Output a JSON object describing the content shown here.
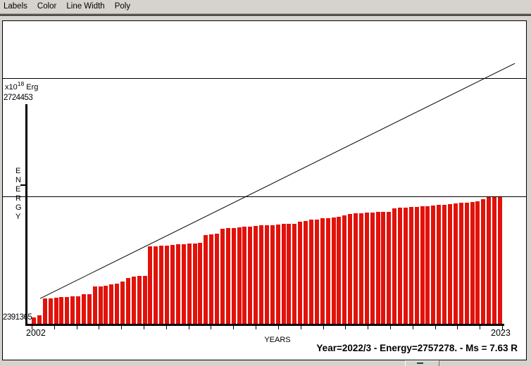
{
  "menu": {
    "items": [
      {
        "label": "Labels"
      },
      {
        "label": "Color"
      },
      {
        "label": "Line Width"
      },
      {
        "label": "Poly"
      }
    ]
  },
  "axis_labels": {
    "y_multiplier": "x10",
    "y_exponent": "18",
    "y_unit": "Erg",
    "y_max": "2724453",
    "y_min": "2391365",
    "y_title_multiline": "E\nN\nE\nR\nG\nY",
    "x_first": "2002",
    "x_last": "2023",
    "x_title": "YEARS"
  },
  "status": {
    "text": "Year=2022/3 - Energy=2757278. - Ms = 7.63 R"
  },
  "chart_data": {
    "type": "bar",
    "xlabel": "YEARS",
    "ylabel": "ENERGY",
    "y_unit": "x10^18 Erg",
    "x_start": 2002.0,
    "x_step": 0.25,
    "x_tick_first": 2002,
    "x_tick_last": 2023,
    "ylim": [
      2391365,
      2724453
    ],
    "bar_color": "#e2120b",
    "line_color": "#000000",
    "values": [
      2402000,
      2405200,
      2430600,
      2430600,
      2431700,
      2432700,
      2432700,
      2433800,
      2433800,
      2437000,
      2437000,
      2448600,
      2448600,
      2449700,
      2451800,
      2452900,
      2456100,
      2461400,
      2463500,
      2464600,
      2464600,
      2509100,
      2509100,
      2510200,
      2510200,
      2511200,
      2512300,
      2512300,
      2513400,
      2513400,
      2514400,
      2526100,
      2527100,
      2528200,
      2535600,
      2536700,
      2536700,
      2537800,
      2538800,
      2538800,
      2539900,
      2540900,
      2540900,
      2540900,
      2542000,
      2543100,
      2543100,
      2543100,
      2546200,
      2547300,
      2549400,
      2549400,
      2551500,
      2551500,
      2552600,
      2553700,
      2555800,
      2557900,
      2559000,
      2559000,
      2560000,
      2560000,
      2561100,
      2561100,
      2561100,
      2566400,
      2567500,
      2567500,
      2568500,
      2568500,
      2569600,
      2569600,
      2570600,
      2571700,
      2571700,
      2572800,
      2573800,
      2574900,
      2574900,
      2575900,
      2577000,
      2580200,
      2583400,
      2584400,
      2584400
    ],
    "trend_line": {
      "x1": 2002.38,
      "v1": 2430600,
      "x2": 2023.57,
      "v2": 2784900
    },
    "reference_line_values": [
      2762600,
      2584400
    ]
  }
}
